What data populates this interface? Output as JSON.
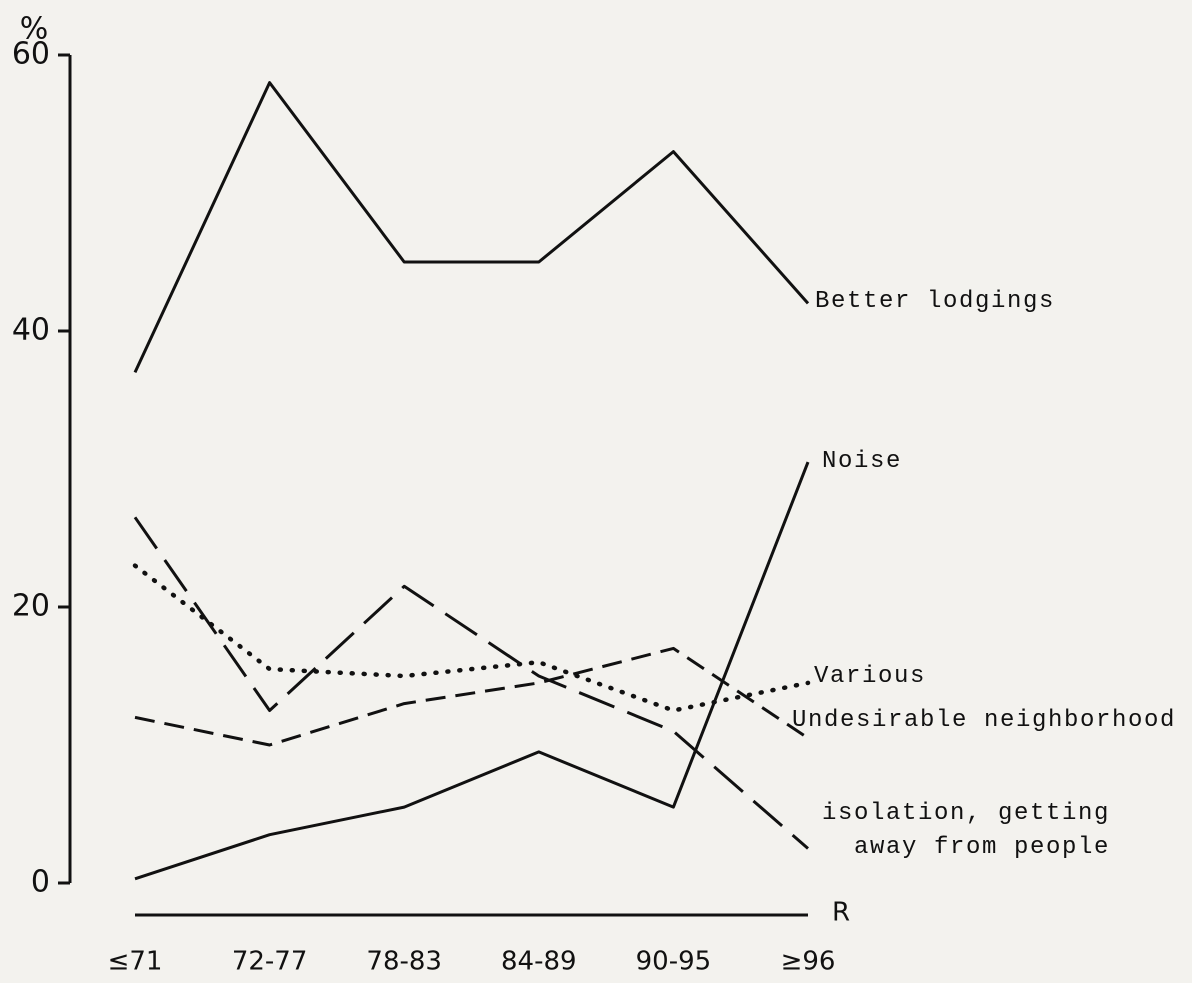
{
  "chart_data": {
    "type": "line",
    "y_label": "%",
    "x_label": "R",
    "categories": [
      "≤71",
      "72-77",
      "78-83",
      "84-89",
      "90-95",
      "≥96"
    ],
    "series": [
      {
        "name": "Better lodgings",
        "color": "#111111",
        "dash": "solid",
        "values": [
          37,
          58,
          45,
          45,
          53,
          42
        ]
      },
      {
        "name": "Noise",
        "color": "#111111",
        "dash": "solid",
        "values": [
          0.3,
          3.5,
          5.5,
          9.5,
          5.5,
          30.5
        ]
      },
      {
        "name": "Various",
        "color": "#111111",
        "dash": "dotted",
        "values": [
          23,
          15.5,
          15,
          16,
          12.5,
          14.5
        ]
      },
      {
        "name": "Undesirable neighborhood",
        "color": "#111111",
        "dash": "dashed",
        "values": [
          12,
          10,
          13,
          14.5,
          17,
          10.5
        ]
      },
      {
        "name": "isolation, getting away from people",
        "color": "#111111",
        "dash": "longdash",
        "values": [
          26.5,
          12.5,
          21.5,
          15,
          11,
          2.5
        ]
      }
    ],
    "ylim": [
      0,
      60
    ],
    "yticks": [
      0,
      20,
      40,
      60
    ]
  }
}
